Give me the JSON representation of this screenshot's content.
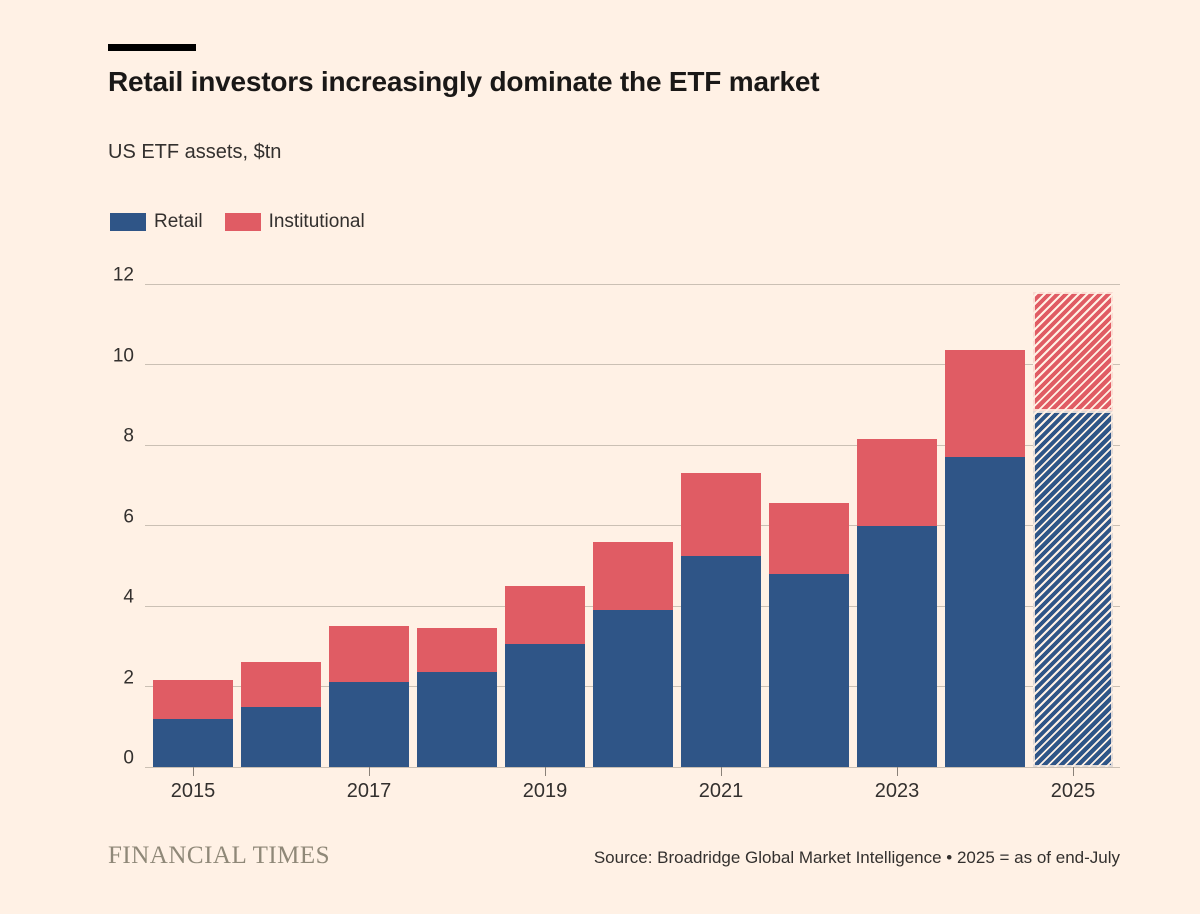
{
  "header": {
    "title": "Retail investors increasingly dominate the ETF market",
    "subtitle": "US ETF assets, $tn"
  },
  "legend": {
    "retail": "Retail",
    "institutional": "Institutional"
  },
  "colors": {
    "retail": "#2F5587",
    "institutional": "#E05C64",
    "background": "#FFF1E5",
    "gridline": "#CBC0B4",
    "axis_text": "#33302E",
    "title_text": "#1A1817",
    "brand_text": "#8F8878"
  },
  "chart_data": {
    "type": "bar",
    "stacked": true,
    "title": "Retail investors increasingly dominate the ETF market",
    "ylabel_unit": "US ETF assets, $tn",
    "categories": [
      "2015",
      "2016",
      "2017",
      "2018",
      "2019",
      "2020",
      "2021",
      "2022",
      "2023",
      "2024",
      "2025"
    ],
    "series": [
      {
        "name": "Retail",
        "values": [
          1.2,
          1.5,
          2.1,
          2.35,
          3.05,
          3.9,
          5.25,
          4.8,
          6.0,
          7.7,
          8.85
        ]
      },
      {
        "name": "Institutional",
        "values": [
          0.95,
          1.1,
          1.4,
          1.1,
          1.45,
          1.7,
          2.05,
          1.75,
          2.15,
          2.65,
          2.95
        ]
      }
    ],
    "totals": [
      2.15,
      2.6,
      3.5,
      3.45,
      4.5,
      5.6,
      7.3,
      6.55,
      8.15,
      10.35,
      11.8
    ],
    "hatched_categories": [
      "2025"
    ],
    "ylim": [
      0,
      12
    ],
    "yticks": [
      0,
      2,
      4,
      6,
      8,
      10,
      12
    ],
    "x_labeled_categories": [
      "2015",
      "2017",
      "2019",
      "2021",
      "2023",
      "2025"
    ],
    "grid": "horizontal",
    "legend_position": "top-left"
  },
  "footer": {
    "brand": "FINANCIAL TIMES",
    "source": "Source: Broadridge Global Market Intelligence • 2025 = as of end-July"
  }
}
